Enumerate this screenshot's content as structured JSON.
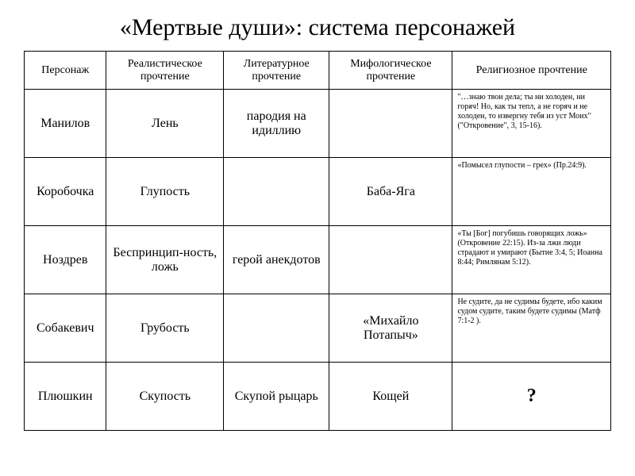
{
  "title": "«Мертвые души»: система персонажей",
  "headers": {
    "col1": "Персонаж",
    "col2": "Реалистическое прочтение",
    "col3": "Литературное прочтение",
    "col4": "Мифологическое прочтение",
    "col5": "Религиозное прочтение"
  },
  "rows": {
    "r1": {
      "c1": "Манилов",
      "c2": "Лень",
      "c3": "пародия на идиллию",
      "c4": "",
      "c5": "\"…знаю твои дела; ты ни холоден, ни горяч! Но, как ты тепл, а не горяч и не холоден, то извергну тебя из уст Моих\" (\"Откровение\", 3, 15-16)."
    },
    "r2": {
      "c1": "Коробочка",
      "c2": "Глупость",
      "c3": "",
      "c4": "Баба-Яга",
      "c5": "«Помысел глупости – грех» (Пр.24:9)."
    },
    "r3": {
      "c1": "Ноздрев",
      "c2": "Беспринцип-ность, ложь",
      "c3": "герой анекдотов",
      "c4": "",
      "c5": "«Ты [Бог] погубишь говорящих ложь» (Откровение 22:15). Из-за лжи люди страдают и умирают (Бытие 3:4, 5; Иоанна 8:44; Римлянам 5:12)."
    },
    "r4": {
      "c1": "Собакевич",
      "c2": "Грубость",
      "c3": "",
      "c4": "«Михайло Потапыч»",
      "c5": "Не судите, да не судимы будете, ибо каким судом судите, таким будете судимы (Матф 7:1-2 )."
    },
    "r5": {
      "c1": "Плюшкин",
      "c2": "Скупость",
      "c3": "Скупой рыцарь",
      "c4": "Кощей",
      "c5": "?"
    }
  }
}
